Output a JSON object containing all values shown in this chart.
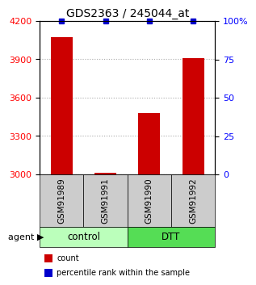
{
  "title": "GDS2363 / 245044_at",
  "samples": [
    "GSM91989",
    "GSM91991",
    "GSM91990",
    "GSM91992"
  ],
  "counts": [
    4075,
    3010,
    3480,
    3910
  ],
  "percentiles": [
    100,
    100,
    100,
    100
  ],
  "ylim_left": [
    3000,
    4200
  ],
  "ylim_right": [
    0,
    100
  ],
  "yticks_left": [
    3000,
    3300,
    3600,
    3900,
    4200
  ],
  "yticks_right": [
    0,
    25,
    50,
    75,
    100
  ],
  "yticklabels_right": [
    "0",
    "25",
    "50",
    "75",
    "100%"
  ],
  "bar_color": "#cc0000",
  "dot_color": "#0000cc",
  "groups": [
    {
      "label": "control",
      "indices": [
        0,
        1
      ],
      "color": "#bbffbb"
    },
    {
      "label": "DTT",
      "indices": [
        2,
        3
      ],
      "color": "#55dd55"
    }
  ],
  "agent_label": "agent",
  "grid_color": "#aaaaaa",
  "sample_box_color": "#cccccc",
  "legend_items": [
    {
      "color": "#cc0000",
      "label": "count"
    },
    {
      "color": "#0000cc",
      "label": "percentile rank within the sample"
    }
  ],
  "bar_width": 0.5,
  "bg_color": "#ffffff"
}
